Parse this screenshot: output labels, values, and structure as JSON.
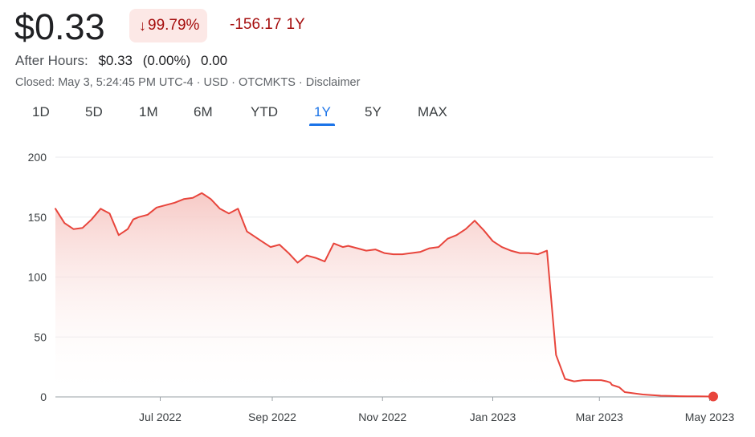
{
  "quote": {
    "price": "$0.33",
    "percent_change": "99.79%",
    "change_direction_icon": "arrow-down-icon",
    "change_value": "-156.17",
    "change_period": "1Y",
    "after_hours_label": "After Hours:",
    "after_hours_price": "$0.33",
    "after_hours_percent": "(0.00%)",
    "after_hours_change": "0.00",
    "meta": "Closed: May 3, 5:24:45 PM UTC-4 · USD · OTCMKTS · Disclaimer"
  },
  "tabs": [
    {
      "label": "1D",
      "active": false
    },
    {
      "label": "5D",
      "active": false
    },
    {
      "label": "1M",
      "active": false
    },
    {
      "label": "6M",
      "active": false
    },
    {
      "label": "YTD",
      "active": false
    },
    {
      "label": "1Y",
      "active": true
    },
    {
      "label": "5Y",
      "active": false
    },
    {
      "label": "MAX",
      "active": false
    }
  ],
  "colors": {
    "line": "#e8453c",
    "fill_top": "#f6c7c3",
    "negative_text": "#a50e0e",
    "badge_bg": "#fce8e6",
    "active_tab": "#1a73e8"
  },
  "chart_data": {
    "type": "area",
    "title": "",
    "xlabel": "",
    "ylabel": "",
    "ylim": [
      0,
      200
    ],
    "yticks": [
      0,
      50,
      100,
      150,
      200
    ],
    "xlim": [
      "2022-05-04",
      "2023-05-03"
    ],
    "xticks": [
      {
        "label": "Jul 2022",
        "date": "2022-07-01"
      },
      {
        "label": "Sep 2022",
        "date": "2022-09-01"
      },
      {
        "label": "Nov 2022",
        "date": "2022-11-01"
      },
      {
        "label": "Jan 2023",
        "date": "2023-01-01"
      },
      {
        "label": "Mar 2023",
        "date": "2023-03-01"
      },
      {
        "label": "May 2023",
        "date": "2023-05-01"
      }
    ],
    "grid": true,
    "series": [
      {
        "x": [
          "2022-05-04",
          "2022-05-09",
          "2022-05-14",
          "2022-05-19",
          "2022-05-24",
          "2022-05-29",
          "2022-06-03",
          "2022-06-08",
          "2022-06-13",
          "2022-06-16",
          "2022-06-19",
          "2022-06-24",
          "2022-06-29",
          "2022-07-04",
          "2022-07-09",
          "2022-07-14",
          "2022-07-19",
          "2022-07-24",
          "2022-07-29",
          "2022-08-03",
          "2022-08-08",
          "2022-08-13",
          "2022-08-18",
          "2022-08-21",
          "2022-08-26",
          "2022-08-31",
          "2022-09-05",
          "2022-09-10",
          "2022-09-15",
          "2022-09-20",
          "2022-09-25",
          "2022-09-30",
          "2022-10-05",
          "2022-10-10",
          "2022-10-13",
          "2022-10-18",
          "2022-10-23",
          "2022-10-28",
          "2022-11-02",
          "2022-11-07",
          "2022-11-12",
          "2022-11-17",
          "2022-11-22",
          "2022-11-27",
          "2022-12-02",
          "2022-12-07",
          "2022-12-12",
          "2022-12-17",
          "2022-12-22",
          "2022-12-27",
          "2023-01-01",
          "2023-01-06",
          "2023-01-11",
          "2023-01-16",
          "2023-01-21",
          "2023-01-26",
          "2023-01-31",
          "2023-02-05",
          "2023-02-10",
          "2023-02-15",
          "2023-02-20",
          "2023-02-25",
          "2023-03-02",
          "2023-03-05",
          "2023-03-07",
          "2023-03-08",
          "2023-03-10",
          "2023-03-12",
          "2023-03-15",
          "2023-03-20",
          "2023-03-25",
          "2023-03-30",
          "2023-04-04",
          "2023-04-09",
          "2023-04-14",
          "2023-04-19",
          "2023-04-24",
          "2023-04-28",
          "2023-05-01",
          "2023-05-03"
        ],
        "values": [
          157,
          145,
          140,
          141,
          148,
          157,
          153,
          135,
          140,
          148,
          150,
          152,
          158,
          160,
          162,
          165,
          166,
          170,
          165,
          157,
          153,
          157,
          138,
          135,
          130,
          125,
          127,
          120,
          112,
          118,
          116,
          113,
          128,
          125,
          126,
          124,
          122,
          123,
          120,
          119,
          119,
          120,
          121,
          124,
          125,
          132,
          135,
          140,
          147,
          139,
          130,
          125,
          122,
          120,
          120,
          119,
          122,
          35,
          15,
          13,
          14,
          14,
          14,
          13,
          12,
          10,
          9,
          8,
          4,
          3,
          2,
          1.5,
          1,
          0.8,
          0.6,
          0.5,
          0.45,
          0.4,
          0.35,
          0.33
        ]
      }
    ]
  }
}
